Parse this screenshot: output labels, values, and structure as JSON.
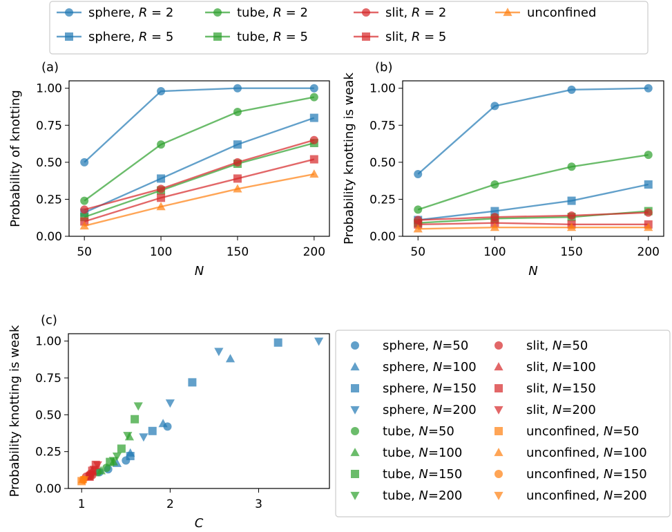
{
  "chart_data": [
    {
      "type": "line",
      "panel_label": "(a)",
      "xlabel": "N",
      "ylabel": "Probability of knotting",
      "x": [
        50,
        100,
        150,
        200
      ],
      "xlim": [
        40,
        210
      ],
      "ylim": [
        0,
        1.05
      ],
      "xticks": [
        "50",
        "100",
        "150",
        "200"
      ],
      "yticks": [
        "0.00",
        "0.25",
        "0.50",
        "0.75",
        "1.00"
      ],
      "series": [
        {
          "key": "sphere-r2",
          "values": [
            0.5,
            0.98,
            1.0,
            1.0
          ]
        },
        {
          "key": "sphere-r5",
          "values": [
            0.16,
            0.39,
            0.62,
            0.8
          ]
        },
        {
          "key": "tube-r2",
          "values": [
            0.24,
            0.62,
            0.84,
            0.94
          ]
        },
        {
          "key": "tube-r5",
          "values": [
            0.13,
            0.31,
            0.49,
            0.63
          ]
        },
        {
          "key": "slit-r2",
          "values": [
            0.18,
            0.32,
            0.5,
            0.65
          ]
        },
        {
          "key": "slit-r5",
          "values": [
            0.1,
            0.26,
            0.39,
            0.52
          ]
        },
        {
          "key": "unconfined",
          "values": [
            0.07,
            0.2,
            0.32,
            0.42
          ]
        }
      ]
    },
    {
      "type": "line",
      "panel_label": "(b)",
      "xlabel": "N",
      "ylabel": "Probability knotting is weak",
      "x": [
        50,
        100,
        150,
        200
      ],
      "xlim": [
        40,
        210
      ],
      "ylim": [
        0,
        1.05
      ],
      "xticks": [
        "50",
        "100",
        "150",
        "200"
      ],
      "yticks": [
        "0.00",
        "0.25",
        "0.50",
        "0.75",
        "1.00"
      ],
      "series": [
        {
          "key": "sphere-r2",
          "values": [
            0.42,
            0.88,
            0.99,
            1.0
          ]
        },
        {
          "key": "sphere-r5",
          "values": [
            0.11,
            0.17,
            0.24,
            0.35
          ]
        },
        {
          "key": "tube-r2",
          "values": [
            0.18,
            0.35,
            0.47,
            0.55
          ]
        },
        {
          "key": "tube-r5",
          "values": [
            0.09,
            0.12,
            0.13,
            0.17
          ]
        },
        {
          "key": "slit-r2",
          "values": [
            0.11,
            0.13,
            0.14,
            0.16
          ]
        },
        {
          "key": "slit-r5",
          "values": [
            0.08,
            0.09,
            0.08,
            0.08
          ]
        },
        {
          "key": "unconfined",
          "values": [
            0.05,
            0.06,
            0.06,
            0.06
          ]
        }
      ]
    },
    {
      "type": "scatter",
      "panel_label": "(c)",
      "xlabel": "C",
      "ylabel": "Probability knotting is weak",
      "xlim": [
        0.85,
        3.8
      ],
      "ylim": [
        0,
        1.05
      ],
      "xticks": [
        1,
        2,
        3
      ],
      "yticks": [
        "0.00",
        "0.25",
        "0.50",
        "0.75",
        "1.00"
      ],
      "series": [
        {
          "name": "sphere, N=50",
          "label_pre": "sphere, ",
          "label_n": "=50",
          "color": "#1f77b4",
          "marker": "circle",
          "points": [
            [
              1.97,
              0.42
            ],
            [
              1.5,
              0.19
            ],
            [
              1.2,
              0.11
            ],
            [
              1.3,
              0.13
            ]
          ]
        },
        {
          "name": "sphere, N=100",
          "label_pre": "sphere, ",
          "label_n": "=100",
          "color": "#1f77b4",
          "marker": "triangle-up",
          "points": [
            [
              2.68,
              0.88
            ],
            [
              1.92,
              0.44
            ],
            [
              1.55,
              0.24
            ],
            [
              1.4,
              0.17
            ]
          ]
        },
        {
          "name": "sphere, N=150",
          "label_pre": "sphere, ",
          "label_n": "=150",
          "color": "#1f77b4",
          "marker": "square",
          "points": [
            [
              3.22,
              0.99
            ],
            [
              2.25,
              0.72
            ],
            [
              1.8,
              0.39
            ],
            [
              1.55,
              0.22
            ]
          ]
        },
        {
          "name": "sphere, N=200",
          "label_pre": "sphere, ",
          "label_n": "=200",
          "color": "#1f77b4",
          "marker": "triangle-down",
          "points": [
            [
              3.68,
              1.0
            ],
            [
              2.55,
              0.93
            ],
            [
              2.0,
              0.58
            ],
            [
              1.7,
              0.35
            ]
          ]
        },
        {
          "name": "tube, N=50",
          "label_pre": "tube, ",
          "label_n": "=50",
          "color": "#2ca02c",
          "marker": "circle",
          "points": [
            [
              1.28,
              0.14
            ],
            [
              1.18,
              0.11
            ],
            [
              1.1,
              0.09
            ]
          ]
        },
        {
          "name": "tube, N=100",
          "label_pre": "tube, ",
          "label_n": "=100",
          "color": "#2ca02c",
          "marker": "triangle-up",
          "points": [
            [
              1.54,
              0.35
            ],
            [
              1.36,
              0.18
            ],
            [
              1.22,
              0.12
            ]
          ]
        },
        {
          "name": "tube, N=150",
          "label_pre": "tube, ",
          "label_n": "=150",
          "color": "#2ca02c",
          "marker": "square",
          "points": [
            [
              1.6,
              0.47
            ],
            [
              1.45,
              0.27
            ],
            [
              1.32,
              0.18
            ]
          ]
        },
        {
          "name": "tube, N=200",
          "label_pre": "tube, ",
          "label_n": "=200",
          "color": "#2ca02c",
          "marker": "triangle-down",
          "points": [
            [
              1.64,
              0.56
            ],
            [
              1.52,
              0.36
            ],
            [
              1.4,
              0.22
            ],
            [
              1.36,
              0.19
            ]
          ]
        },
        {
          "name": "slit, N=50",
          "label_pre": "slit, ",
          "label_n": "=50",
          "color": "#d62728",
          "marker": "circle",
          "points": [
            [
              1.1,
              0.1
            ],
            [
              1.05,
              0.08
            ],
            [
              1.12,
              0.09
            ]
          ]
        },
        {
          "name": "slit, N=100",
          "label_pre": "slit, ",
          "label_n": "=100",
          "color": "#d62728",
          "marker": "triangle-up",
          "points": [
            [
              1.12,
              0.12
            ],
            [
              1.08,
              0.08
            ]
          ]
        },
        {
          "name": "slit, N=150",
          "label_pre": "slit, ",
          "label_n": "=150",
          "color": "#d62728",
          "marker": "square",
          "points": [
            [
              1.16,
              0.16
            ],
            [
              1.12,
              0.12
            ],
            [
              1.09,
              0.08
            ]
          ]
        },
        {
          "name": "slit, N=200",
          "label_pre": "slit, ",
          "label_n": "=200",
          "color": "#d62728",
          "marker": "triangle-down",
          "points": [
            [
              1.18,
              0.16
            ],
            [
              1.14,
              0.13
            ],
            [
              1.1,
              0.09
            ]
          ]
        },
        {
          "name": "unconfined, N=50",
          "label_pre": "unconfined, ",
          "label_n": "=50",
          "color": "#ff7f0e",
          "marker": "square",
          "points": [
            [
              1.0,
              0.05
            ]
          ]
        },
        {
          "name": "unconfined, N=100",
          "label_pre": "unconfined, ",
          "label_n": "=100",
          "color": "#ff7f0e",
          "marker": "triangle-up",
          "points": [
            [
              1.01,
              0.06
            ]
          ]
        },
        {
          "name": "unconfined, N=150",
          "label_pre": "unconfined, ",
          "label_n": "=150",
          "color": "#ff7f0e",
          "marker": "circle",
          "points": [
            [
              1.02,
              0.06
            ]
          ]
        },
        {
          "name": "unconfined, N=200",
          "label_pre": "unconfined, ",
          "label_n": "=200",
          "color": "#ff7f0e",
          "marker": "triangle-down",
          "points": [
            [
              1.03,
              0.06
            ]
          ]
        }
      ]
    }
  ],
  "top_legend": [
    {
      "key": "sphere-r2",
      "label_pre": "sphere, ",
      "label_r": " = 2",
      "color": "#1f77b4",
      "marker": "circle"
    },
    {
      "key": "sphere-r5",
      "label_pre": "sphere, ",
      "label_r": " = 5",
      "color": "#1f77b4",
      "marker": "square"
    },
    {
      "key": "tube-r2",
      "label_pre": "tube, ",
      "label_r": " = 2",
      "color": "#2ca02c",
      "marker": "circle"
    },
    {
      "key": "tube-r5",
      "label_pre": "tube, ",
      "label_r": " = 5",
      "color": "#2ca02c",
      "marker": "square"
    },
    {
      "key": "slit-r2",
      "label_pre": "slit, ",
      "label_r": " = 2",
      "color": "#d62728",
      "marker": "circle"
    },
    {
      "key": "slit-r5",
      "label_pre": "slit, ",
      "label_r": " = 5",
      "color": "#d62728",
      "marker": "square"
    },
    {
      "key": "unconfined",
      "label_pre": "unconfined",
      "label_r": "",
      "color": "#ff7f0e",
      "marker": "triangle-up"
    }
  ],
  "legend_placement": {
    "panels_ab": "top",
    "panel_c": "right"
  }
}
